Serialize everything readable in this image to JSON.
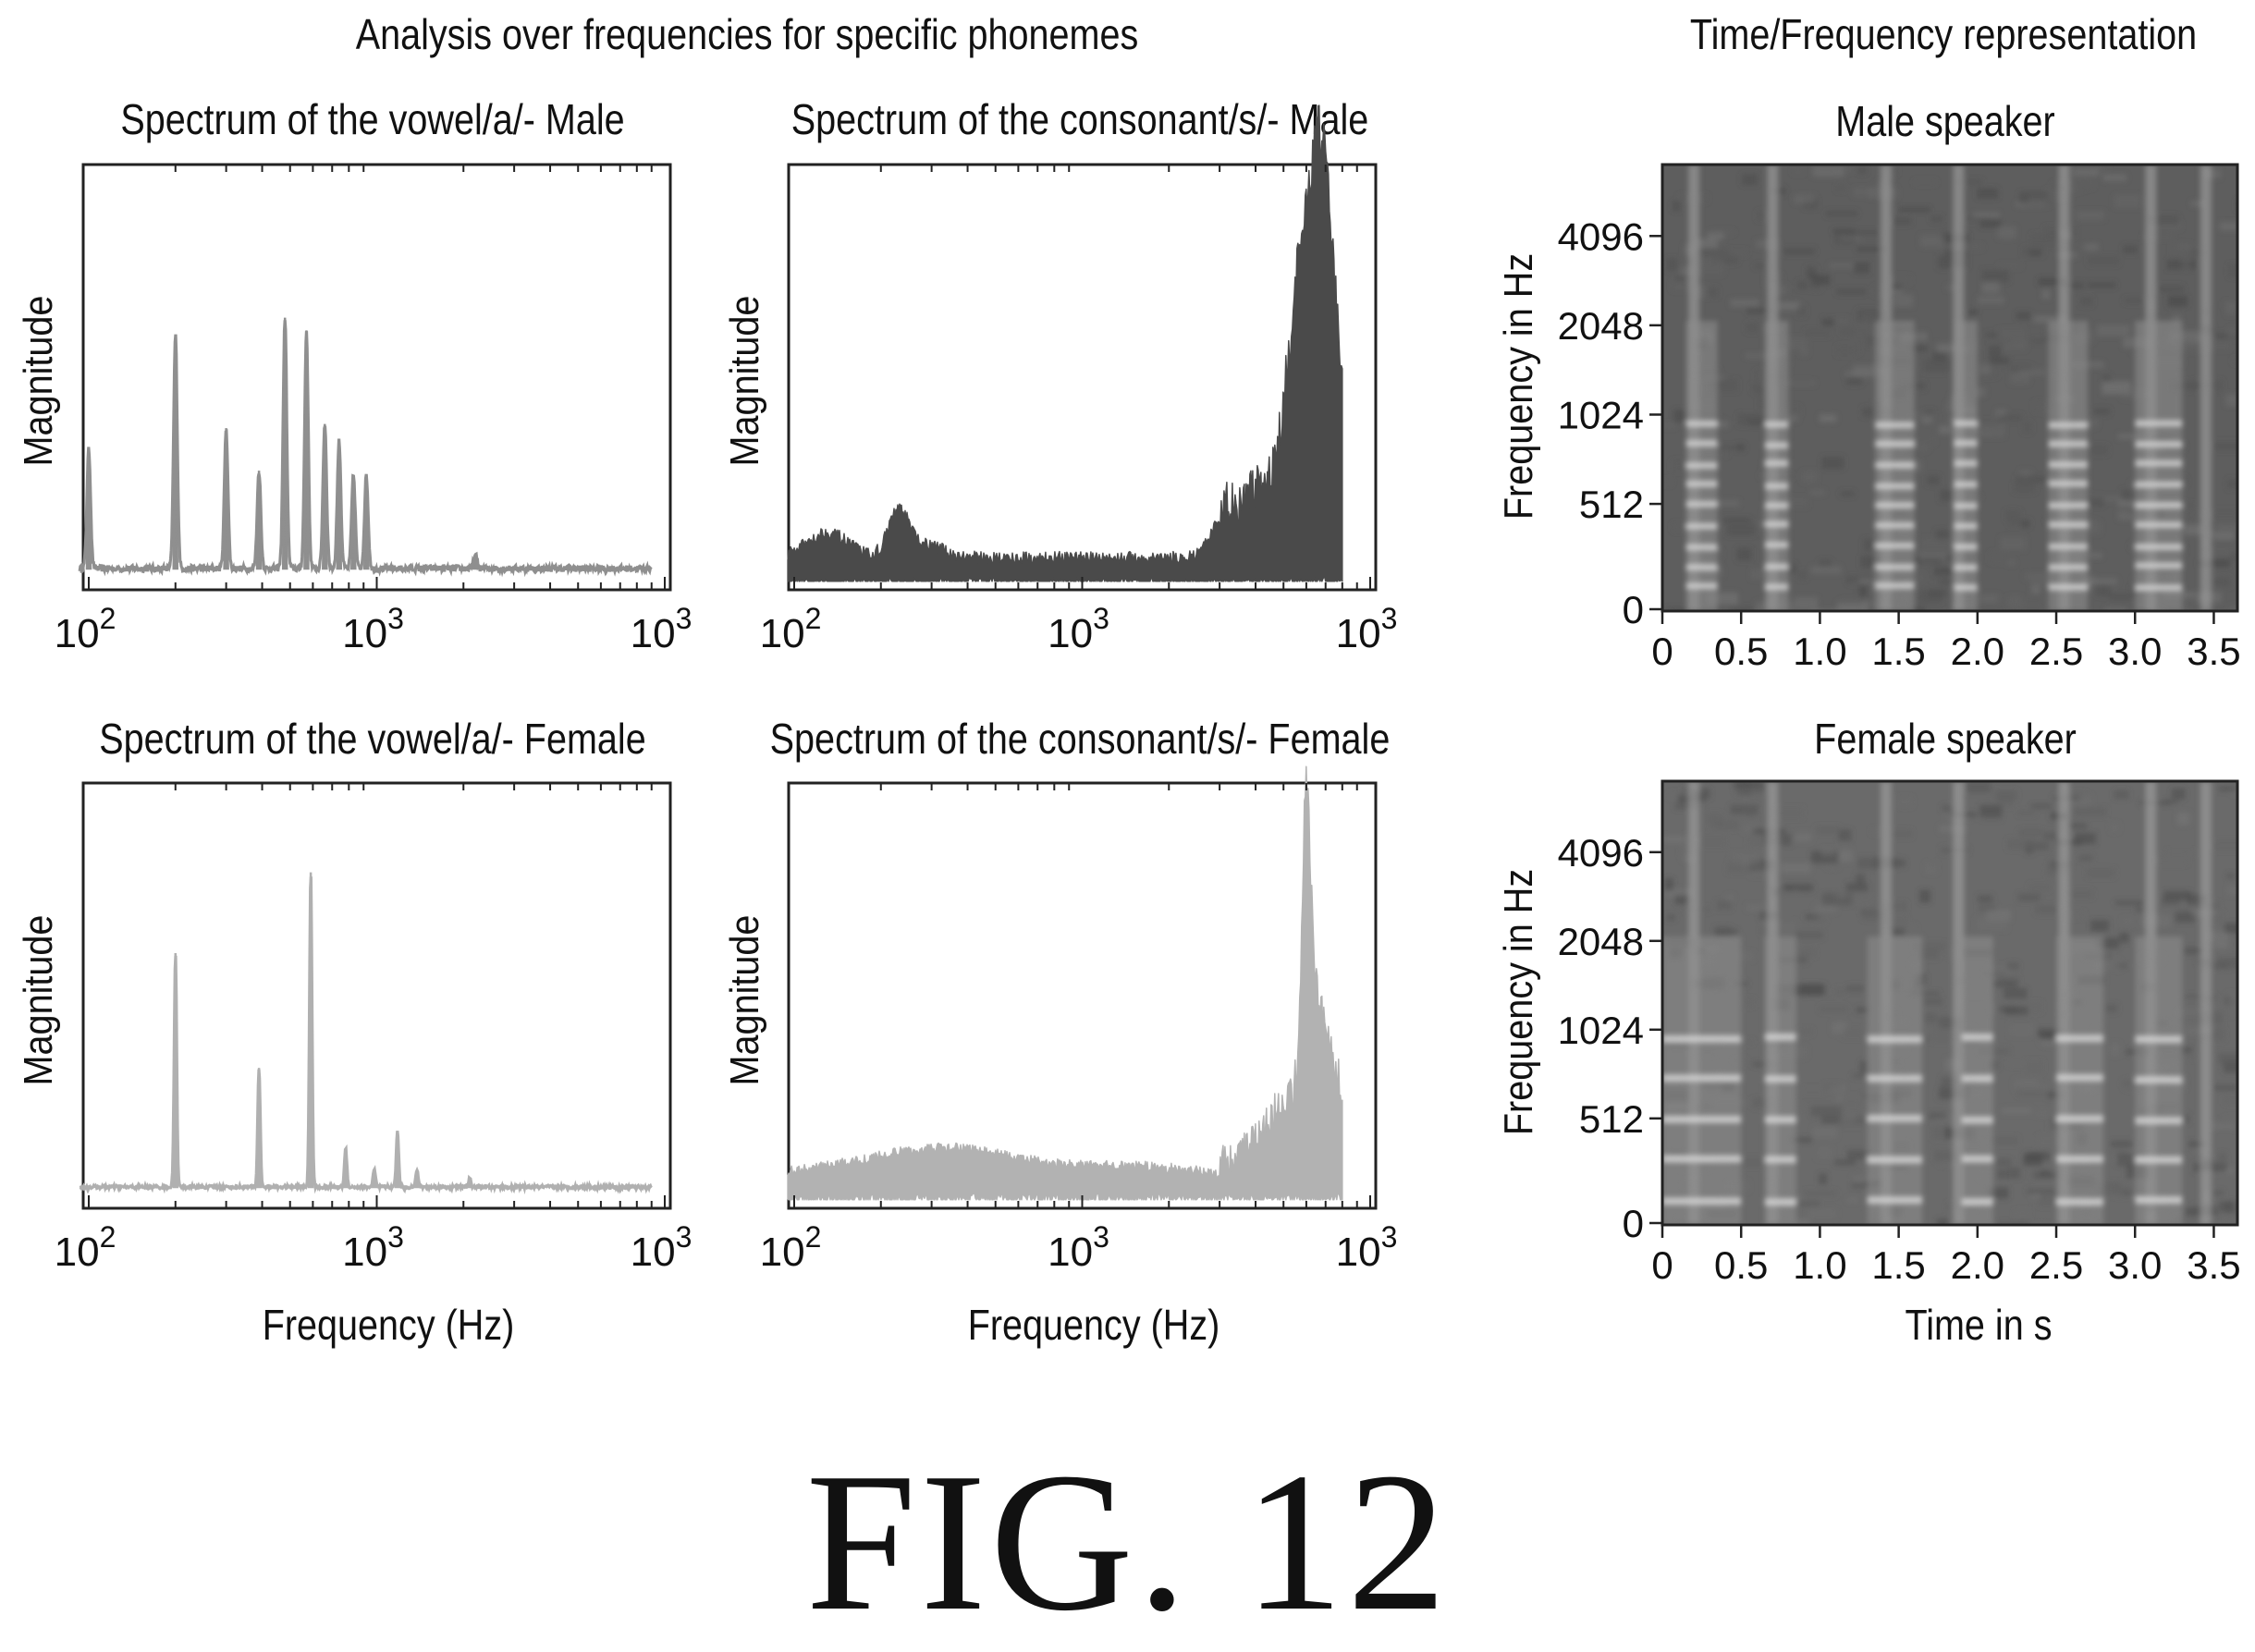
{
  "section_titles": {
    "left": "Analysis over frequencies for specific phonemes",
    "right": "Time/Frequency representation"
  },
  "figure_label": "FIG. 12",
  "chart_data": [
    {
      "id": "vowel_male",
      "type": "line",
      "title": "Spectrum of the vowel/a/- Male",
      "xlabel": "",
      "ylabel": "Magnitude",
      "xscale": "log",
      "x_tick_labels": [
        {
          "base": "10",
          "exp": "2"
        },
        {
          "base": "10",
          "exp": "3"
        },
        {
          "base": "10",
          "exp": "3"
        }
      ],
      "color": "#8f8f8f",
      "baseline": 0.05,
      "noise": 0.015,
      "peaks": [
        [
          1.0,
          0.28
        ],
        [
          2.0,
          0.55
        ],
        [
          3.0,
          0.33
        ],
        [
          3.9,
          0.23
        ],
        [
          4.8,
          0.59
        ],
        [
          5.7,
          0.56
        ],
        [
          6.6,
          0.34
        ],
        [
          7.4,
          0.3
        ],
        [
          8.3,
          0.22
        ],
        [
          9.2,
          0.22
        ],
        [
          22.0,
          0.03
        ]
      ],
      "peak_width": 0.05,
      "x_end": 90,
      "shape": "peaks"
    },
    {
      "id": "consonant_male",
      "type": "area",
      "title": "Spectrum of the consonant/s/- Male",
      "xlabel": "",
      "ylabel": "Magnitude",
      "xscale": "log",
      "x_tick_labels": [
        {
          "base": "10",
          "exp": "2"
        },
        {
          "base": "10",
          "exp": "3"
        },
        {
          "base": "10",
          "exp": "3"
        }
      ],
      "color": "#4a4a4a",
      "baseline": 0.06,
      "noise": 0.03,
      "bumps": [
        [
          1.3,
          0.06,
          0.1
        ],
        [
          2.3,
          0.1,
          0.05
        ],
        [
          2.8,
          0.03,
          0.1
        ],
        [
          30,
          0.07,
          0.05
        ],
        [
          45,
          0.14,
          0.12
        ],
        [
          55,
          0.35,
          0.05
        ],
        [
          65,
          0.58,
          0.06
        ],
        [
          72,
          0.45,
          0.07
        ]
      ],
      "x_end": 80,
      "shape": "band"
    },
    {
      "id": "vowel_female",
      "type": "line",
      "title": "Spectrum of the vowel/a/- Female",
      "xlabel": "Frequency (Hz)",
      "ylabel": "Magnitude",
      "xscale": "log",
      "x_tick_labels": [
        {
          "base": "10",
          "exp": "2"
        },
        {
          "base": "10",
          "exp": "3"
        },
        {
          "base": "10",
          "exp": "3"
        }
      ],
      "color": "#b0b0b0",
      "baseline": 0.05,
      "noise": 0.008,
      "peaks": [
        [
          2.0,
          0.55
        ],
        [
          3.9,
          0.28
        ],
        [
          5.9,
          0.74
        ],
        [
          7.8,
          0.09
        ],
        [
          9.8,
          0.04
        ],
        [
          11.8,
          0.13
        ],
        [
          13.8,
          0.04
        ],
        [
          21.0,
          0.02
        ]
      ],
      "peak_width": 0.035,
      "x_end": 90,
      "shape": "peaks"
    },
    {
      "id": "consonant_female",
      "type": "area",
      "title": "Spectrum of the consonant/s/- Female",
      "xlabel": "Frequency (Hz)",
      "ylabel": "Magnitude",
      "xscale": "log",
      "x_tick_labels": [
        {
          "base": "10",
          "exp": "2"
        },
        {
          "base": "10",
          "exp": "3"
        },
        {
          "base": "10",
          "exp": "3"
        }
      ],
      "color": "#b2b2b2",
      "baseline": 0.06,
      "noise": 0.025,
      "bumps": [
        [
          2.5,
          0.04,
          0.4
        ],
        [
          4.0,
          0.035,
          0.3
        ],
        [
          15,
          0.025,
          0.3
        ],
        [
          50,
          0.12,
          0.1
        ],
        [
          60,
          0.58,
          0.02
        ],
        [
          63,
          0.2,
          0.05
        ],
        [
          72,
          0.22,
          0.08
        ]
      ],
      "x_end": 80,
      "shape": "band"
    },
    {
      "id": "spectrogram_male",
      "type": "heatmap",
      "title": "Male speaker",
      "xlabel": "",
      "ylabel": "Frequency in Hz",
      "x_ticks": [
        0,
        0.5,
        1.0,
        1.5,
        2.0,
        2.5,
        3.0,
        3.5
      ],
      "x_tick_labels": [
        "0",
        "0.5",
        "1.0",
        "1.5",
        "2.0",
        "2.5",
        "3.0",
        "3.5"
      ],
      "y_tick_labels": [
        "0",
        "512",
        "1024",
        "2048",
        "4096"
      ],
      "xlim": [
        0,
        3.65
      ],
      "voiced_segments": [
        [
          0.15,
          0.35
        ],
        [
          0.65,
          0.8
        ],
        [
          1.35,
          1.6
        ],
        [
          1.85,
          2.0
        ],
        [
          2.45,
          2.7
        ],
        [
          3.0,
          3.3
        ]
      ],
      "harmonic_rows": [
        0,
        1,
        2,
        3,
        4,
        5,
        6,
        7,
        8
      ],
      "background": "#5e5e5e"
    },
    {
      "id": "spectrogram_female",
      "type": "heatmap",
      "title": "Female speaker",
      "xlabel": "Time in s",
      "ylabel": "Frequency in Hz",
      "x_ticks": [
        0,
        0.5,
        1.0,
        1.5,
        2.0,
        2.5,
        3.0,
        3.5
      ],
      "x_tick_labels": [
        "0",
        "0.5",
        "1.0",
        "1.5",
        "2.0",
        "2.5",
        "3.0",
        "3.5"
      ],
      "y_tick_labels": [
        "0",
        "512",
        "1024",
        "2048",
        "4096"
      ],
      "xlim": [
        0,
        3.65
      ],
      "voiced_segments": [
        [
          0.0,
          0.5
        ],
        [
          0.65,
          0.85
        ],
        [
          1.3,
          1.65
        ],
        [
          1.9,
          2.1
        ],
        [
          2.5,
          2.8
        ],
        [
          3.0,
          3.3
        ]
      ],
      "harmonic_rows": [
        0,
        1,
        2,
        3,
        4
      ],
      "background": "#6a6a6a"
    }
  ]
}
